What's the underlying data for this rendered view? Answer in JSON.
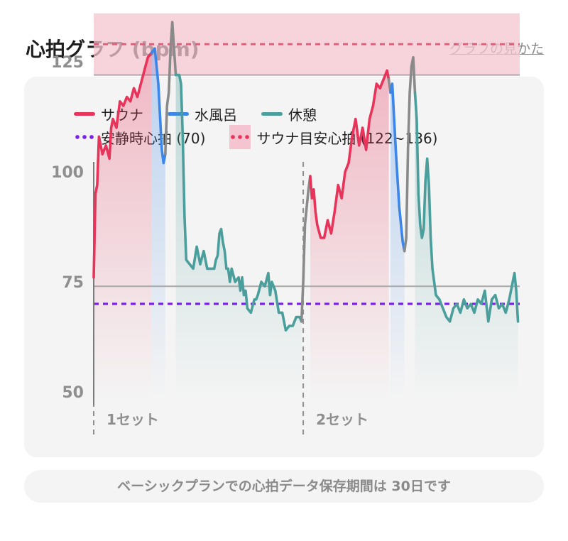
{
  "header": {
    "title": "心拍グラフ (bpm)",
    "help_link": "グラフの見かた"
  },
  "legend": {
    "sauna": "サウナ",
    "cold_bath": "水風呂",
    "rest": "休憩",
    "resting_hr": "安静時心拍 (70)",
    "sauna_target": "サウナ目安心拍 (122~136)"
  },
  "colors": {
    "sauna": "#e8345a",
    "cold_bath": "#3b86e8",
    "rest": "#4a9e9c",
    "transition": "#8a8a8a",
    "resting_line": "#7b22e8",
    "target_line": "#e85a7a",
    "target_band": "#f4c4d0"
  },
  "notice": "ベーシックプランでの心拍データ保存期間は 30日です",
  "chart_data": {
    "type": "line",
    "x_unit": "minutes",
    "ylim": [
      45,
      155
    ],
    "yticks": [
      50,
      75,
      100,
      125,
      150
    ],
    "resting_hr": 70,
    "target_band": [
      122,
      136
    ],
    "target_line": 129,
    "target_edges": [
      122,
      136
    ],
    "reference_line": 74,
    "sets": [
      {
        "label": "1セット",
        "start": 0
      },
      {
        "label": "2セット",
        "start": 60
      }
    ],
    "segments": [
      {
        "phase": "sauna",
        "points": [
          [
            0,
            76
          ],
          [
            0.5,
            95
          ],
          [
            1,
            97
          ],
          [
            1.5,
            108
          ],
          [
            2.5,
            104
          ],
          [
            3.5,
            106
          ],
          [
            4.5,
            103
          ],
          [
            5,
            110
          ],
          [
            5.5,
            112
          ],
          [
            6.5,
            110
          ],
          [
            7.5,
            116
          ],
          [
            8.5,
            115
          ],
          [
            9.5,
            117
          ],
          [
            10.5,
            116
          ],
          [
            11.5,
            119
          ],
          [
            12.5,
            117
          ],
          [
            13.5,
            120
          ],
          [
            14.5,
            123
          ],
          [
            15.5,
            126
          ],
          [
            16.5,
            127
          ]
        ]
      },
      {
        "phase": "cold_bath",
        "points": [
          [
            16.5,
            127
          ],
          [
            17.5,
            128
          ],
          [
            18.5,
            120
          ],
          [
            19.5,
            105
          ],
          [
            20,
            102
          ],
          [
            20.5,
            104
          ]
        ]
      },
      {
        "phase": "transition",
        "points": [
          [
            20.5,
            104
          ],
          [
            21,
            115
          ],
          [
            21.5,
            118
          ],
          [
            22,
            128
          ],
          [
            22.5,
            134
          ],
          [
            23,
            128
          ],
          [
            23.5,
            122
          ]
        ]
      },
      {
        "phase": "rest",
        "points": [
          [
            23.5,
            122
          ],
          [
            24.5,
            122
          ],
          [
            25,
            120
          ],
          [
            25.5,
            108
          ],
          [
            26,
            90
          ],
          [
            26.5,
            80
          ],
          [
            27.5,
            79
          ],
          [
            28.5,
            78
          ],
          [
            29.5,
            83
          ],
          [
            30.5,
            79
          ],
          [
            31.5,
            82
          ],
          [
            32.5,
            78
          ],
          [
            33.5,
            78
          ],
          [
            34.5,
            78
          ],
          [
            35,
            80
          ],
          [
            35.5,
            81
          ],
          [
            36,
            86
          ],
          [
            36.5,
            87
          ],
          [
            37,
            84
          ],
          [
            37.5,
            82
          ],
          [
            38,
            78
          ],
          [
            38.5,
            78
          ],
          [
            39,
            75
          ],
          [
            39.5,
            78
          ],
          [
            40.5,
            75
          ],
          [
            41.5,
            76
          ],
          [
            42,
            73
          ],
          [
            42.5,
            76
          ],
          [
            43,
            72
          ],
          [
            43.5,
            73
          ],
          [
            44,
            69
          ],
          [
            45,
            68
          ],
          [
            46,
            71
          ],
          [
            46.5,
            71
          ],
          [
            47,
            72
          ],
          [
            48,
            75
          ],
          [
            49,
            74
          ],
          [
            50,
            77
          ],
          [
            50.5,
            72
          ],
          [
            51,
            75
          ],
          [
            52,
            73
          ],
          [
            53,
            68
          ],
          [
            54,
            68
          ],
          [
            55,
            64
          ],
          [
            56,
            65
          ],
          [
            57,
            65
          ],
          [
            58,
            67
          ],
          [
            59,
            67
          ],
          [
            59.5,
            66
          ]
        ]
      },
      {
        "phase": "transition",
        "points": [
          [
            59.5,
            66
          ],
          [
            60,
            75
          ],
          [
            60.5,
            88
          ],
          [
            61,
            92
          ],
          [
            61.5,
            96
          ],
          [
            62,
            99
          ]
        ]
      },
      {
        "phase": "sauna",
        "points": [
          [
            62,
            99
          ],
          [
            62.5,
            94
          ],
          [
            63,
            96
          ],
          [
            63.5,
            91
          ],
          [
            64,
            88
          ],
          [
            65,
            85
          ],
          [
            66,
            85
          ],
          [
            67,
            89
          ],
          [
            68,
            86
          ],
          [
            69,
            91
          ],
          [
            70,
            97
          ],
          [
            71,
            94
          ],
          [
            72,
            100
          ],
          [
            73,
            102
          ],
          [
            74,
            108
          ],
          [
            75,
            112
          ],
          [
            76,
            106
          ],
          [
            77,
            110
          ],
          [
            78,
            105
          ],
          [
            79,
            112
          ],
          [
            80,
            115
          ],
          [
            81,
            120
          ],
          [
            82,
            119
          ],
          [
            83,
            121
          ],
          [
            84,
            123
          ],
          [
            84.5,
            121
          ]
        ]
      },
      {
        "phase": "transition",
        "points": [
          [
            84.5,
            121
          ],
          [
            85,
            118
          ]
        ]
      },
      {
        "phase": "cold_bath",
        "points": [
          [
            85,
            118
          ],
          [
            85.5,
            120
          ],
          [
            86.5,
            105
          ],
          [
            87.5,
            92
          ],
          [
            88.5,
            84
          ],
          [
            89,
            82
          ]
        ]
      },
      {
        "phase": "transition",
        "points": [
          [
            89,
            82
          ],
          [
            89.5,
            85
          ],
          [
            90,
            105
          ],
          [
            90.5,
            118
          ],
          [
            91,
            124
          ],
          [
            91.5,
            126
          ],
          [
            92,
            118
          ]
        ]
      },
      {
        "phase": "rest",
        "points": [
          [
            92,
            118
          ],
          [
            92.5,
            112
          ],
          [
            93,
            95
          ],
          [
            93.5,
            88
          ],
          [
            94,
            85
          ],
          [
            94.5,
            87
          ],
          [
            95,
            98
          ],
          [
            95.5,
            103
          ],
          [
            96,
            97
          ],
          [
            96.5,
            85
          ],
          [
            97,
            78
          ],
          [
            97.5,
            75
          ],
          [
            98,
            72
          ],
          [
            99,
            71
          ],
          [
            100,
            69
          ],
          [
            101,
            67
          ],
          [
            102,
            66
          ],
          [
            103,
            69
          ],
          [
            104,
            70
          ],
          [
            105,
            68
          ],
          [
            106,
            71
          ],
          [
            107,
            69
          ],
          [
            108,
            70
          ],
          [
            109,
            68
          ],
          [
            110,
            71
          ],
          [
            111,
            70
          ],
          [
            112,
            73
          ],
          [
            113,
            66
          ],
          [
            114,
            71
          ],
          [
            115,
            72
          ],
          [
            116,
            69
          ],
          [
            117,
            70
          ],
          [
            118,
            68
          ],
          [
            119,
            71
          ],
          [
            120,
            75
          ],
          [
            120.5,
            77
          ],
          [
            121,
            73
          ],
          [
            121.5,
            66
          ]
        ]
      }
    ]
  }
}
